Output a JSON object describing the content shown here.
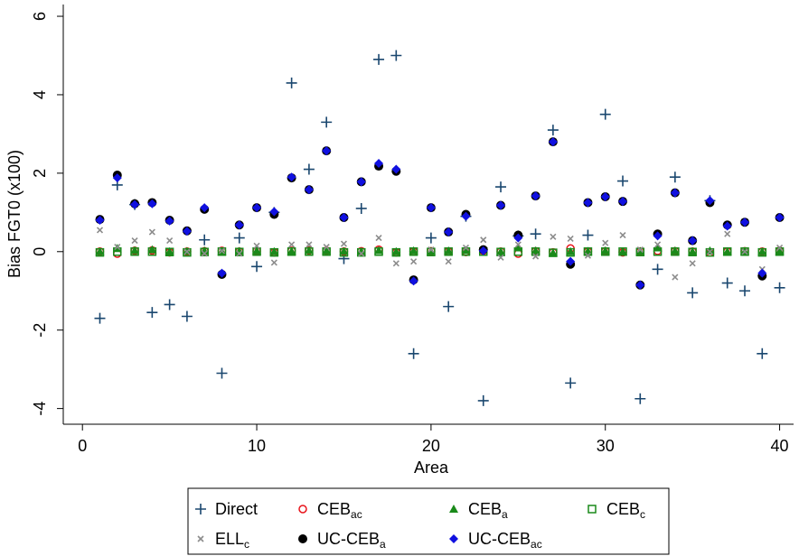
{
  "chart_data": {
    "type": "scatter",
    "x_label": "Area",
    "y_label": "Bias FGT0 (x100)",
    "xlim": [
      -1.1,
      40.8
    ],
    "ylim": [
      -4.4,
      6.3
    ],
    "xticks": [
      0,
      10,
      20,
      30,
      40
    ],
    "yticks": [
      -4,
      -2,
      0,
      2,
      4,
      6
    ],
    "x": [
      1,
      2,
      3,
      4,
      5,
      6,
      7,
      8,
      9,
      10,
      11,
      12,
      13,
      14,
      15,
      16,
      17,
      18,
      19,
      20,
      21,
      22,
      23,
      24,
      25,
      26,
      27,
      28,
      29,
      30,
      31,
      32,
      33,
      34,
      35,
      36,
      37,
      38,
      39,
      40
    ],
    "series": [
      {
        "name": "Direct",
        "marker": "plus",
        "color": "#1a476f",
        "values": [
          -1.7,
          1.7,
          1.2,
          -1.55,
          -1.35,
          -1.65,
          0.3,
          -3.1,
          0.35,
          -0.38,
          1.0,
          4.3,
          2.1,
          3.3,
          -0.18,
          1.1,
          4.9,
          5.0,
          -2.6,
          0.35,
          -1.4,
          0.9,
          -3.8,
          1.65,
          0.4,
          0.45,
          3.1,
          -3.35,
          0.42,
          3.5,
          1.8,
          -3.75,
          -0.45,
          1.9,
          -1.05,
          1.3,
          -0.8,
          -1.0,
          -2.6,
          -0.92
        ]
      },
      {
        "name": "CEB",
        "name_sub": "ac",
        "marker": "circle-open",
        "color": "#e8141b",
        "values": [
          0.0,
          -0.05,
          0.02,
          0.03,
          -0.02,
          0.0,
          0.01,
          0.02,
          0.0,
          0.01,
          -0.02,
          0.02,
          0.03,
          0.02,
          0.0,
          0.01,
          0.05,
          -0.02,
          0.0,
          0.01,
          0.0,
          -0.01,
          0.02,
          0.0,
          -0.05,
          0.01,
          -0.02,
          0.08,
          0.0,
          0.01,
          -0.02,
          0.0,
          0.02,
          0.01,
          0.0,
          -0.02,
          0.0,
          0.01,
          0.0,
          0.02
        ]
      },
      {
        "name": "CEB",
        "name_sub": "a",
        "marker": "triangle",
        "color": "#1a8a1a",
        "values": [
          0.0,
          0.08,
          0.03,
          0.05,
          0.0,
          0.01,
          0.02,
          0.0,
          0.01,
          0.02,
          0.0,
          0.01,
          0.03,
          0.02,
          0.01,
          0.0,
          0.03,
          0.0,
          0.02,
          0.01,
          0.02,
          0.03,
          0.05,
          0.0,
          0.1,
          0.02,
          -0.03,
          0.0,
          0.01,
          0.02,
          0.0,
          0.01,
          0.1,
          0.02,
          0.0,
          0.02,
          0.0,
          0.01,
          0.0,
          0.01
        ]
      },
      {
        "name": "CEB",
        "name_sub": "c",
        "marker": "square-open",
        "color": "#1a8a1a",
        "values": [
          -0.02,
          0.0,
          0.0,
          0.0,
          -0.01,
          -0.02,
          -0.01,
          0.0,
          -0.01,
          0.0,
          -0.02,
          0.0,
          0.0,
          0.0,
          -0.02,
          -0.02,
          0.0,
          -0.02,
          0.0,
          -0.01,
          0.0,
          0.0,
          0.0,
          -0.01,
          0.0,
          0.0,
          -0.03,
          -0.02,
          0.0,
          0.0,
          0.0,
          -0.01,
          0.0,
          0.0,
          -0.01,
          -0.02,
          0.0,
          0.0,
          -0.02,
          0.0
        ]
      },
      {
        "name": "ELL",
        "name_sub": "c",
        "marker": "x",
        "color": "#8c8c8c",
        "values": [
          0.55,
          0.12,
          0.28,
          0.5,
          0.28,
          0.0,
          -0.05,
          0.02,
          -0.05,
          0.15,
          -0.28,
          0.18,
          0.18,
          0.12,
          0.2,
          -0.05,
          0.35,
          -0.3,
          -0.25,
          0.05,
          -0.25,
          0.1,
          0.3,
          -0.15,
          0.18,
          -0.12,
          0.38,
          0.33,
          -0.1,
          0.22,
          0.42,
          0.05,
          0.18,
          -0.65,
          -0.3,
          0.0,
          0.45,
          0.0,
          -0.45,
          0.1
        ]
      },
      {
        "name": "UC-CEB",
        "name_sub": "a",
        "marker": "circle",
        "color": "#000000",
        "values": [
          0.82,
          1.95,
          1.22,
          1.25,
          0.8,
          0.53,
          1.08,
          -0.58,
          0.68,
          1.12,
          0.95,
          1.88,
          1.58,
          2.57,
          0.87,
          1.78,
          2.18,
          2.05,
          -0.72,
          1.12,
          0.5,
          0.95,
          0.05,
          1.18,
          0.42,
          1.42,
          2.8,
          -0.32,
          1.25,
          1.4,
          1.28,
          -0.85,
          0.45,
          1.5,
          0.28,
          1.25,
          0.68,
          0.75,
          -0.62,
          0.87
        ]
      },
      {
        "name": "UC-CEB",
        "name_sub": "ac",
        "marker": "diamond",
        "color": "#1010e0",
        "values": [
          0.8,
          1.88,
          1.2,
          1.22,
          0.78,
          0.52,
          1.12,
          -0.55,
          0.68,
          1.12,
          1.02,
          1.9,
          1.58,
          2.57,
          0.87,
          1.78,
          2.25,
          2.1,
          -0.75,
          1.12,
          0.5,
          0.9,
          0.02,
          1.18,
          0.35,
          1.42,
          2.8,
          -0.25,
          1.25,
          1.4,
          1.28,
          -0.85,
          0.4,
          1.5,
          0.28,
          1.3,
          0.65,
          0.75,
          -0.55,
          0.87
        ]
      }
    ]
  }
}
